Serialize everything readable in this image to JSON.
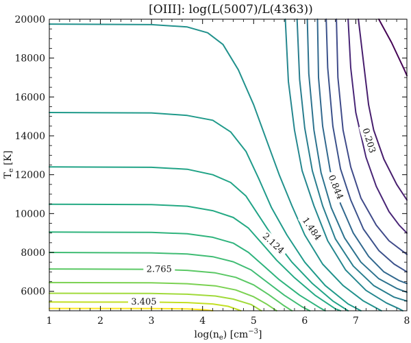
{
  "chart_data": {
    "type": "contour",
    "title": "[OIII]: log(L(5007)/L(4363))",
    "xlabel": "log(n_e) [cm^-3]",
    "ylabel": "T_e [K]",
    "xlim": [
      1,
      8
    ],
    "ylim": [
      5000,
      20000
    ],
    "xticks": [
      1,
      2,
      3,
      4,
      5,
      6,
      7,
      8
    ],
    "yticks": [
      6000,
      8000,
      10000,
      12000,
      14000,
      16000,
      18000,
      20000
    ],
    "xtick_labels": [
      "1",
      "2",
      "3",
      "4",
      "5",
      "6",
      "7",
      "8"
    ],
    "ytick_labels": [
      "6000",
      "8000",
      "10000",
      "12000",
      "14000",
      "16000",
      "18000",
      "20000"
    ],
    "colormap": "viridis",
    "levels": [
      {
        "color": "#440154",
        "points": [
          [
            7.45,
            20000
          ],
          [
            7.7,
            18800
          ],
          [
            7.95,
            17400
          ],
          [
            8.0,
            17100
          ]
        ]
      },
      {
        "color": "#471d6d",
        "points": [
          [
            7.05,
            20000
          ],
          [
            7.15,
            17800
          ],
          [
            7.25,
            15600
          ],
          [
            7.35,
            14300
          ],
          [
            7.55,
            12800
          ],
          [
            7.8,
            11500
          ],
          [
            8.0,
            10700
          ]
        ]
      },
      {
        "color": "#482576",
        "points": [
          [
            6.85,
            20000
          ],
          [
            6.9,
            17500
          ],
          [
            7.0,
            15200
          ],
          [
            7.2,
            12900
          ],
          [
            7.4,
            11400
          ],
          [
            7.65,
            10100
          ],
          [
            7.85,
            9400
          ],
          [
            8.0,
            9000
          ]
        ]
      },
      {
        "color": "#3f4a89",
        "points": [
          [
            6.62,
            20000
          ],
          [
            6.65,
            17000
          ],
          [
            6.75,
            14300
          ],
          [
            6.9,
            12400
          ],
          [
            7.1,
            10800
          ],
          [
            7.4,
            9400
          ],
          [
            7.65,
            8600
          ],
          [
            8.0,
            7900
          ]
        ]
      },
      {
        "color": "#3b518b",
        "points": [
          [
            6.42,
            20000
          ],
          [
            6.45,
            17500
          ],
          [
            6.55,
            14500
          ],
          [
            6.7,
            12300
          ],
          [
            6.9,
            10700
          ],
          [
            7.15,
            9200
          ],
          [
            7.45,
            8100
          ],
          [
            7.75,
            7400
          ],
          [
            8.0,
            7000
          ]
        ]
      },
      {
        "color": "#31688e",
        "points": [
          [
            6.25,
            20000
          ],
          [
            6.27,
            17000
          ],
          [
            6.35,
            14500
          ],
          [
            6.5,
            12200
          ],
          [
            6.7,
            10500
          ],
          [
            6.95,
            9000
          ],
          [
            7.25,
            7800
          ],
          [
            7.55,
            7000
          ],
          [
            7.85,
            6550
          ],
          [
            8.0,
            6400
          ]
        ]
      },
      {
        "color": "#2c728e",
        "points": [
          [
            6.05,
            20000
          ],
          [
            6.08,
            17200
          ],
          [
            6.18,
            14300
          ],
          [
            6.32,
            12100
          ],
          [
            6.52,
            10300
          ],
          [
            6.78,
            8750
          ],
          [
            7.1,
            7500
          ],
          [
            7.45,
            6650
          ],
          [
            7.8,
            6150
          ],
          [
            8.0,
            5950
          ]
        ]
      },
      {
        "color": "#287d8e",
        "points": [
          [
            5.85,
            20000
          ],
          [
            5.9,
            16900
          ],
          [
            6.0,
            14400
          ],
          [
            6.15,
            12200
          ],
          [
            6.35,
            10400
          ],
          [
            6.6,
            8700
          ],
          [
            6.95,
            7300
          ],
          [
            7.35,
            6300
          ],
          [
            7.75,
            5700
          ],
          [
            8.0,
            5500
          ]
        ]
      },
      {
        "color": "#24868e",
        "points": [
          [
            5.62,
            20000
          ],
          [
            5.68,
            16800
          ],
          [
            5.8,
            14300
          ],
          [
            5.95,
            12200
          ],
          [
            6.18,
            10400
          ],
          [
            6.45,
            8600
          ],
          [
            6.8,
            7100
          ],
          [
            7.2,
            6050
          ],
          [
            7.6,
            5400
          ],
          [
            7.85,
            5100
          ],
          [
            7.92,
            5000
          ]
        ]
      },
      {
        "color": "#21918c",
        "points": [
          [
            1.0,
            19750
          ],
          [
            3.0,
            19720
          ],
          [
            3.7,
            19600
          ],
          [
            4.1,
            19300
          ],
          [
            4.4,
            18700
          ],
          [
            4.7,
            17400
          ],
          [
            5.0,
            15600
          ],
          [
            5.25,
            13800
          ],
          [
            5.5,
            12000
          ],
          [
            5.75,
            10400
          ],
          [
            6.0,
            8900
          ],
          [
            6.35,
            7400
          ],
          [
            6.75,
            6300
          ],
          [
            7.15,
            5500
          ],
          [
            7.5,
            5000
          ]
        ]
      },
      {
        "color": "#1f9a8a",
        "points": [
          [
            1.0,
            15200
          ],
          [
            3.0,
            15180
          ],
          [
            3.7,
            15050
          ],
          [
            4.2,
            14800
          ],
          [
            4.55,
            14200
          ],
          [
            4.85,
            13200
          ],
          [
            5.1,
            11800
          ],
          [
            5.35,
            10300
          ],
          [
            5.65,
            8900
          ],
          [
            6.0,
            7500
          ],
          [
            6.4,
            6300
          ],
          [
            6.85,
            5350
          ],
          [
            7.1,
            5000
          ]
        ]
      },
      {
        "color": "#20a386",
        "points": [
          [
            1.0,
            12400
          ],
          [
            3.0,
            12380
          ],
          [
            3.7,
            12280
          ],
          [
            4.2,
            12000
          ],
          [
            4.55,
            11600
          ],
          [
            4.85,
            10900
          ],
          [
            5.1,
            9900
          ],
          [
            5.4,
            8700
          ],
          [
            5.75,
            7500
          ],
          [
            6.15,
            6400
          ],
          [
            6.55,
            5500
          ],
          [
            6.85,
            5000
          ]
        ]
      },
      {
        "color": "#23a983",
        "points": [
          [
            1.0,
            10480
          ],
          [
            3.0,
            10460
          ],
          [
            3.7,
            10380
          ],
          [
            4.2,
            10150
          ],
          [
            4.6,
            9800
          ],
          [
            4.9,
            9250
          ],
          [
            5.15,
            8500
          ],
          [
            5.45,
            7600
          ],
          [
            5.8,
            6700
          ],
          [
            6.2,
            5800
          ],
          [
            6.6,
            5100
          ],
          [
            6.7,
            5000
          ]
        ]
      },
      {
        "color": "#2eb37c",
        "points": [
          [
            1.0,
            9050
          ],
          [
            3.0,
            9030
          ],
          [
            3.7,
            8960
          ],
          [
            4.2,
            8780
          ],
          [
            4.6,
            8480
          ],
          [
            4.9,
            8000
          ],
          [
            5.2,
            7300
          ],
          [
            5.5,
            6600
          ],
          [
            5.9,
            5800
          ],
          [
            6.3,
            5150
          ],
          [
            6.4,
            5000
          ]
        ]
      },
      {
        "color": "#3fbc73",
        "points": [
          [
            1.0,
            8000
          ],
          [
            3.0,
            7980
          ],
          [
            3.7,
            7920
          ],
          [
            4.2,
            7780
          ],
          [
            4.6,
            7520
          ],
          [
            4.95,
            7100
          ],
          [
            5.25,
            6500
          ],
          [
            5.6,
            5800
          ],
          [
            5.95,
            5200
          ],
          [
            6.1,
            5000
          ]
        ]
      },
      {
        "color": "#5ac864",
        "points": [
          [
            1.0,
            7150
          ],
          [
            3.0,
            7130
          ],
          [
            3.7,
            7080
          ],
          [
            4.25,
            6950
          ],
          [
            4.65,
            6720
          ],
          [
            5.0,
            6330
          ],
          [
            5.3,
            5820
          ],
          [
            5.6,
            5250
          ],
          [
            5.75,
            5000
          ]
        ]
      },
      {
        "color": "#7ad151",
        "points": [
          [
            1.0,
            6450
          ],
          [
            3.0,
            6440
          ],
          [
            3.7,
            6390
          ],
          [
            4.25,
            6280
          ],
          [
            4.65,
            6070
          ],
          [
            5.0,
            5720
          ],
          [
            5.25,
            5350
          ],
          [
            5.45,
            5000
          ]
        ]
      },
      {
        "color": "#a0da39",
        "points": [
          [
            1.0,
            5900
          ],
          [
            3.0,
            5890
          ],
          [
            3.7,
            5850
          ],
          [
            4.25,
            5760
          ],
          [
            4.6,
            5600
          ],
          [
            4.95,
            5320
          ],
          [
            5.15,
            5000
          ]
        ]
      },
      {
        "color": "#c2df23",
        "points": [
          [
            1.0,
            5450
          ],
          [
            3.0,
            5445
          ],
          [
            3.7,
            5420
          ],
          [
            4.2,
            5350
          ],
          [
            4.5,
            5230
          ],
          [
            4.7,
            5050
          ],
          [
            4.75,
            5000
          ]
        ]
      },
      {
        "color": "#fde725",
        "points": [
          [
            1.0,
            5120
          ],
          [
            3.0,
            5115
          ],
          [
            3.7,
            5100
          ],
          [
            4.05,
            5050
          ],
          [
            4.2,
            5000
          ]
        ]
      }
    ],
    "contour_labels": [
      {
        "text": "0.203",
        "x": 7.25,
        "y": 13750,
        "angle": 73
      },
      {
        "text": "0.844",
        "x": 6.6,
        "y": 11350,
        "angle": 68
      },
      {
        "text": "1.484",
        "x": 6.13,
        "y": 9200,
        "angle": 55
      },
      {
        "text": "2.124",
        "x": 5.38,
        "y": 8450,
        "angle": 43
      },
      {
        "text": "2.765",
        "x": 3.15,
        "y": 7110,
        "angle": 0
      },
      {
        "text": "3.405",
        "x": 2.85,
        "y": 5440,
        "angle": 0
      }
    ]
  }
}
